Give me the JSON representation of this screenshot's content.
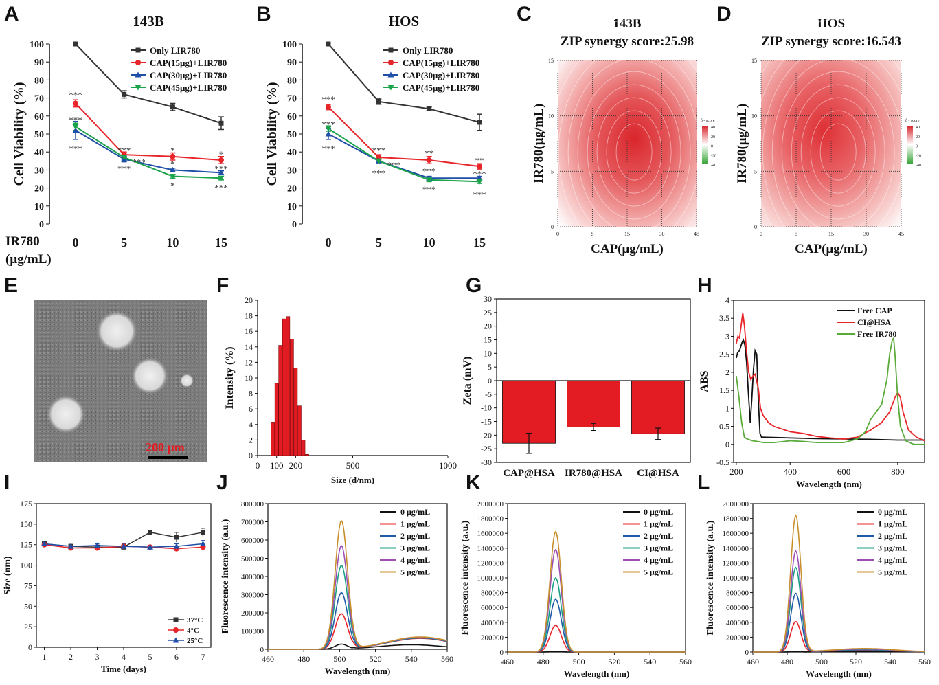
{
  "panels": {
    "A": {
      "letter": "A"
    },
    "B": {
      "letter": "B"
    },
    "C": {
      "letter": "C"
    },
    "D": {
      "letter": "D"
    },
    "E": {
      "letter": "E",
      "scale_bar": "200 μm"
    },
    "F": {
      "letter": "F"
    },
    "G": {
      "letter": "G"
    },
    "H": {
      "letter": "H"
    },
    "I": {
      "letter": "I"
    },
    "J": {
      "letter": "J"
    },
    "K": {
      "letter": "K"
    },
    "L": {
      "letter": "L"
    }
  },
  "ir780_row_label": [
    "IR780",
    "(μg/mL)"
  ],
  "colors": {
    "black": "#333333",
    "red": "#e8262a",
    "blue": "#1f4fa8",
    "green": "#1aa34a",
    "bar": "#e31c23",
    "orange": "#c8902c",
    "purple": "#9b4fb2",
    "teal": "#18a084"
  },
  "chart_data": [
    {
      "id": "A",
      "type": "line",
      "title": "143B",
      "xlabel": "",
      "ylabel": "Cell Viability (%)",
      "categories": [
        "0",
        "5",
        "10",
        "15"
      ],
      "ylim": [
        0,
        100
      ],
      "yticks": [
        0,
        10,
        20,
        30,
        40,
        50,
        60,
        70,
        80,
        90,
        100
      ],
      "series": [
        {
          "name": "Only LIR780",
          "color": "#333333",
          "values": [
            100,
            72,
            65,
            56
          ],
          "err": [
            0,
            2,
            2,
            3.5
          ]
        },
        {
          "name": "CAP(15μg)+LIR780",
          "color": "#e8262a",
          "values": [
            67,
            38.5,
            37.5,
            35.5
          ],
          "err": [
            2,
            1.5,
            2,
            2
          ]
        },
        {
          "name": "CAP(30μg)+LIR780",
          "color": "#1f4fa8",
          "values": [
            52,
            36,
            30,
            28.5
          ],
          "err": [
            5,
            1.5,
            1,
            1
          ]
        },
        {
          "name": "CAP(45μg)+LIR780",
          "color": "#1aa34a",
          "values": [
            54,
            37,
            26.5,
            25.5
          ],
          "err": [
            2,
            1.5,
            1,
            1
          ]
        }
      ],
      "annotations": [
        {
          "cat": 0,
          "y": 72,
          "text": "***"
        },
        {
          "cat": 0,
          "y": 58,
          "text": "***"
        },
        {
          "cat": 0,
          "y": 42,
          "text": "***"
        },
        {
          "cat": 1,
          "y": 41,
          "text": "***"
        },
        {
          "cat": 1,
          "y": 31,
          "text": "***"
        },
        {
          "cat": 1.3,
          "y": 34.5,
          "text": "***"
        },
        {
          "cat": 2,
          "y": 41,
          "text": "*"
        },
        {
          "cat": 2,
          "y": 33.5,
          "text": "*"
        },
        {
          "cat": 2,
          "y": 21.5,
          "text": "*"
        },
        {
          "cat": 3,
          "y": 39,
          "text": "*"
        },
        {
          "cat": 3,
          "y": 31,
          "text": "***"
        },
        {
          "cat": 3,
          "y": 20.5,
          "text": "***"
        }
      ]
    },
    {
      "id": "B",
      "type": "line",
      "title": "HOS",
      "xlabel": "",
      "ylabel": "Cell Viability (%)",
      "categories": [
        "0",
        "5",
        "10",
        "15"
      ],
      "ylim": [
        0,
        100
      ],
      "yticks": [
        0,
        10,
        20,
        30,
        40,
        50,
        60,
        70,
        80,
        90,
        100
      ],
      "series": [
        {
          "name": "Only LIR780",
          "color": "#333333",
          "values": [
            100,
            68,
            64,
            56.5
          ],
          "err": [
            0,
            1.5,
            1,
            4.5
          ]
        },
        {
          "name": "CAP(15μg)+LIR780",
          "color": "#e8262a",
          "values": [
            65,
            37,
            35.5,
            32
          ],
          "err": [
            1.5,
            1.5,
            2,
            1.5
          ]
        },
        {
          "name": "CAP(30μg)+LIR780",
          "color": "#1f4fa8",
          "values": [
            50,
            35,
            25.5,
            25.5
          ],
          "err": [
            3,
            1,
            1,
            1
          ]
        },
        {
          "name": "CAP(45μg)+LIR780",
          "color": "#1aa34a",
          "values": [
            53,
            35,
            24.5,
            23.5
          ],
          "err": [
            1.5,
            1,
            1,
            1
          ]
        }
      ],
      "annotations": [
        {
          "cat": 0,
          "y": 69.5,
          "text": "***"
        },
        {
          "cat": 0,
          "y": 55.5,
          "text": "***"
        },
        {
          "cat": 0,
          "y": 42,
          "text": "***"
        },
        {
          "cat": 1,
          "y": 41,
          "text": "***"
        },
        {
          "cat": 1,
          "y": 28.5,
          "text": "***"
        },
        {
          "cat": 1.3,
          "y": 33,
          "text": "***"
        },
        {
          "cat": 2,
          "y": 39.5,
          "text": "**"
        },
        {
          "cat": 2,
          "y": 29.5,
          "text": "***"
        },
        {
          "cat": 2,
          "y": 19.5,
          "text": "***"
        },
        {
          "cat": 3,
          "y": 35.5,
          "text": "**"
        },
        {
          "cat": 3,
          "y": 28,
          "text": "***"
        },
        {
          "cat": 3,
          "y": 16.5,
          "text": "***"
        }
      ]
    },
    {
      "id": "C",
      "type": "heatmap",
      "title": "143B",
      "subtitle": "ZIP synergy score:25.98",
      "xlabel": "CAP(μg/mL)",
      "ylabel": "IR780(μg/mL)",
      "xticks": [
        "0",
        "5",
        "15",
        "30",
        "45"
      ],
      "yticks": [
        "0",
        "5",
        "10",
        "15"
      ],
      "colorbar_title": "δ - score",
      "colorbar_ticks": [
        "40",
        "20",
        "0",
        "-20",
        "-40"
      ]
    },
    {
      "id": "D",
      "type": "heatmap",
      "title": "HOS",
      "subtitle": "ZIP synergy score:16.543",
      "xlabel": "CAP(μg/mL)",
      "ylabel": "IR780(μg/mL)",
      "xticks": [
        "0",
        "5",
        "15",
        "30",
        "45"
      ],
      "yticks": [
        "0",
        "5",
        "10",
        "15"
      ],
      "colorbar_title": "δ - score",
      "colorbar_ticks": [
        "40",
        "20",
        "0",
        "-20",
        "-40"
      ]
    },
    {
      "id": "F",
      "type": "bar",
      "title": "",
      "xlabel": "Size (d/nm)",
      "ylabel": "Intensity (%)",
      "xlim": [
        0,
        1000
      ],
      "xticks": [
        0,
        100,
        200,
        500,
        1000
      ],
      "ylim": [
        0,
        20
      ],
      "yticks": [
        0,
        2,
        4,
        6,
        8,
        10,
        12,
        14,
        16,
        18,
        20
      ],
      "bins_x": [
        80,
        100,
        120,
        140,
        160,
        180,
        200,
        220,
        240,
        260
      ],
      "values": [
        4.3,
        9.3,
        14.2,
        17.6,
        17.9,
        15.0,
        11.3,
        6.4,
        2.0,
        0.15
      ]
    },
    {
      "id": "G",
      "type": "bar",
      "title": "",
      "xlabel": "",
      "ylabel": "Zeta (mV)",
      "categories": [
        "CAP@HSA",
        "IR780@HSA",
        "CI@HSA"
      ],
      "values": [
        -23,
        -17,
        -19.5
      ],
      "err": [
        3.7,
        1.3,
        2.1
      ],
      "ylim": [
        -30,
        30
      ],
      "yticks": [
        -30,
        -25,
        -20,
        -15,
        -10,
        -5,
        0,
        5,
        10,
        15,
        20,
        25,
        30
      ]
    },
    {
      "id": "H",
      "type": "line",
      "title": "",
      "xlabel": "Wavelength (nm)",
      "ylabel": "ABS",
      "xlim": [
        190,
        900
      ],
      "xticks": [
        200,
        400,
        600,
        800
      ],
      "ylim": [
        -0.5,
        4.0
      ],
      "yticks": [
        -0.5,
        0,
        0.5,
        1,
        1.5,
        2,
        2.5,
        3,
        3.5,
        4
      ],
      "series": [
        {
          "name": "Free CAP",
          "color": "#111111",
          "x": [
            200,
            205,
            212,
            220,
            226,
            232,
            238,
            246,
            252,
            258,
            264,
            270,
            276,
            282,
            288,
            294,
            300,
            350,
            400,
            500,
            600,
            700,
            800,
            900
          ],
          "y": [
            2.4,
            2.55,
            2.6,
            2.8,
            2.9,
            2.75,
            2.3,
            1.3,
            0.6,
            1.3,
            2.1,
            2.6,
            2.5,
            1.2,
            0.3,
            0.2,
            0.2,
            0.19,
            0.18,
            0.16,
            0.15,
            0.14,
            0.12,
            0.12
          ]
        },
        {
          "name": "CI@HSA",
          "color": "#e8262a",
          "x": [
            200,
            206,
            212,
            218,
            224,
            230,
            238,
            246,
            254,
            262,
            270,
            276,
            282,
            290,
            300,
            320,
            340,
            360,
            380,
            400,
            450,
            500,
            550,
            600,
            650,
            700,
            740,
            770,
            790,
            800,
            810,
            820,
            840,
            870,
            900
          ],
          "y": [
            2.8,
            3.0,
            2.95,
            3.3,
            3.65,
            3.3,
            2.6,
            2.0,
            1.8,
            1.9,
            1.95,
            1.75,
            1.55,
            1.0,
            0.8,
            0.6,
            0.5,
            0.45,
            0.4,
            0.35,
            0.3,
            0.22,
            0.18,
            0.15,
            0.2,
            0.4,
            0.6,
            0.9,
            1.3,
            1.45,
            1.3,
            0.9,
            0.4,
            0.2,
            0.1
          ]
        },
        {
          "name": "Free IR780",
          "color": "#5aaa3a",
          "x": [
            200,
            210,
            220,
            230,
            240,
            260,
            280,
            300,
            340,
            400,
            450,
            500,
            550,
            600,
            650,
            680,
            700,
            720,
            740,
            760,
            770,
            780,
            785,
            790,
            800,
            810,
            830,
            860,
            900
          ],
          "y": [
            1.9,
            1.3,
            0.6,
            0.2,
            0.15,
            0.1,
            0.08,
            0.05,
            0.05,
            0.1,
            0.08,
            0.05,
            0.05,
            0.05,
            0.15,
            0.35,
            0.7,
            0.9,
            1.1,
            1.8,
            2.5,
            2.9,
            2.95,
            2.5,
            1.3,
            0.5,
            0.1,
            0.0,
            0.0
          ]
        }
      ]
    },
    {
      "id": "I",
      "type": "line",
      "title": "",
      "xlabel": "Time (days)",
      "ylabel": "Size (nm)",
      "xlim": [
        0.7,
        7.3
      ],
      "xticks": [
        1,
        2,
        3,
        4,
        5,
        6,
        7
      ],
      "ylim": [
        0,
        175
      ],
      "yticks": [
        0,
        25,
        50,
        75,
        100,
        125,
        150,
        175
      ],
      "series": [
        {
          "name": "37°C",
          "color": "#333333",
          "x": [
            1,
            2,
            3,
            4,
            5,
            6,
            7
          ],
          "y": [
            126,
            123,
            122,
            122,
            140,
            134,
            140
          ],
          "err": [
            2,
            1,
            2,
            4,
            2,
            6,
            5
          ]
        },
        {
          "name": "4°C",
          "color": "#e8262a",
          "x": [
            1,
            2,
            3,
            4,
            5,
            6,
            7
          ],
          "y": [
            125,
            121,
            121,
            123,
            122,
            120,
            122
          ],
          "err": [
            2,
            1,
            2,
            2,
            1,
            3,
            2
          ]
        },
        {
          "name": "25°C",
          "color": "#1f4fa8",
          "x": [
            1,
            2,
            3,
            4,
            5,
            6,
            7
          ],
          "y": [
            126,
            123,
            124,
            123,
            122,
            123,
            126
          ],
          "err": [
            3,
            1,
            2,
            3,
            2,
            3,
            4
          ]
        }
      ]
    },
    {
      "id": "J",
      "type": "line",
      "title": "",
      "xlabel": "Wavelength (nm)",
      "ylabel": "Fluorescence intensity (a.u.)",
      "xlim": [
        460,
        560
      ],
      "xticks": [
        460,
        480,
        500,
        520,
        540,
        560
      ],
      "ylim": [
        0,
        800000
      ],
      "yticks": [
        0,
        100000,
        200000,
        300000,
        400000,
        500000,
        600000,
        700000,
        800000
      ],
      "peak_x": 501,
      "peak_sigma": 3.5,
      "series": [
        {
          "name": "0 μg/mL",
          "color": "#111111",
          "peak": 28000,
          "tail": 25000,
          "tail_center": 540
        },
        {
          "name": "1 μg/mL",
          "color": "#e8262a",
          "peak": 195000,
          "tail": 60000,
          "tail_center": 545
        },
        {
          "name": "2 μg/mL",
          "color": "#1f5aa8",
          "peak": 310000,
          "tail": 62000,
          "tail_center": 545
        },
        {
          "name": "3 μg/mL",
          "color": "#18a084",
          "peak": 460000,
          "tail": 64000,
          "tail_center": 545
        },
        {
          "name": "4 μg/mL",
          "color": "#9b4fb2",
          "peak": 568000,
          "tail": 66000,
          "tail_center": 545
        },
        {
          "name": "5 μg/mL",
          "color": "#c8902c",
          "peak": 705000,
          "tail": 68000,
          "tail_center": 545
        }
      ]
    },
    {
      "id": "K",
      "type": "line",
      "title": "",
      "xlabel": "Wavelength (nm)",
      "ylabel": "Fluorescence intensity (a.u.)",
      "xlim": [
        460,
        560
      ],
      "xticks": [
        460,
        480,
        500,
        520,
        540,
        560
      ],
      "ylim": [
        0,
        2000000
      ],
      "yticks": [
        0,
        200000,
        400000,
        600000,
        800000,
        1000000,
        1200000,
        1400000,
        1600000,
        1800000,
        2000000
      ],
      "peak_x": 487,
      "peak_sigma": 3.2,
      "series": [
        {
          "name": "0 μg/mL",
          "color": "#111111",
          "peak": 5000,
          "tail": 0,
          "tail_center": 540
        },
        {
          "name": "1 μg/mL",
          "color": "#e8262a",
          "peak": 360000,
          "tail": 0,
          "tail_center": 540
        },
        {
          "name": "2 μg/mL",
          "color": "#1f5aa8",
          "peak": 710000,
          "tail": 0,
          "tail_center": 540
        },
        {
          "name": "3 μg/mL",
          "color": "#18a084",
          "peak": 1000000,
          "tail": 0,
          "tail_center": 540
        },
        {
          "name": "4 μg/mL",
          "color": "#9b4fb2",
          "peak": 1380000,
          "tail": 0,
          "tail_center": 540
        },
        {
          "name": "5 μg/mL",
          "color": "#c8902c",
          "peak": 1620000,
          "tail": 0,
          "tail_center": 540
        }
      ]
    },
    {
      "id": "L",
      "type": "line",
      "title": "",
      "xlabel": "Wavelength (nm)",
      "ylabel": "Fluorescence intensity (a.u.)",
      "xlim": [
        460,
        560
      ],
      "xticks": [
        460,
        480,
        500,
        520,
        540,
        560
      ],
      "ylim": [
        0,
        2000000
      ],
      "yticks": [
        0,
        200000,
        400000,
        600000,
        800000,
        1000000,
        1200000,
        1400000,
        1600000,
        1800000,
        2000000
      ],
      "peak_x": 485,
      "peak_sigma": 3.0,
      "series": [
        {
          "name": "0 μg/mL",
          "color": "#111111",
          "peak": 5000,
          "tail": 10000,
          "tail_center": 525
        },
        {
          "name": "1 μg/mL",
          "color": "#e8262a",
          "peak": 410000,
          "tail": 25000,
          "tail_center": 525
        },
        {
          "name": "2 μg/mL",
          "color": "#1f5aa8",
          "peak": 790000,
          "tail": 30000,
          "tail_center": 525
        },
        {
          "name": "3 μg/mL",
          "color": "#18a084",
          "peak": 1140000,
          "tail": 35000,
          "tail_center": 525
        },
        {
          "name": "4 μg/mL",
          "color": "#9b4fb2",
          "peak": 1360000,
          "tail": 40000,
          "tail_center": 525
        },
        {
          "name": "5 μg/mL",
          "color": "#c8902c",
          "peak": 1840000,
          "tail": 48000,
          "tail_center": 525
        }
      ]
    }
  ]
}
